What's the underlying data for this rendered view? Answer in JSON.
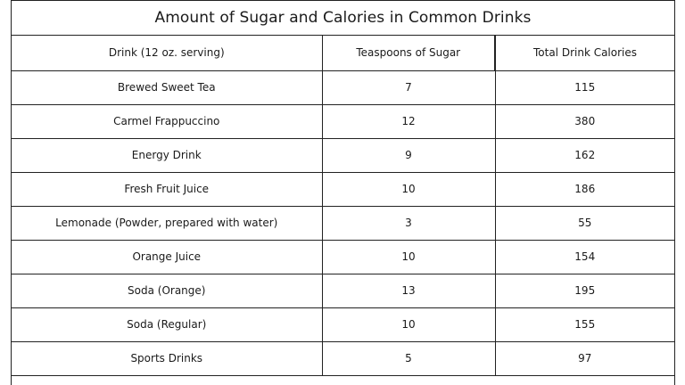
{
  "title": "Amount of Sugar and Calories in Common Drinks",
  "columns": [
    "Drink (12 oz. serving)",
    "Teaspoons of Sugar",
    "Total Drink Calories"
  ],
  "rows": [
    {
      "drink": "Brewed Sweet Tea",
      "sugar": "7",
      "calories": "115"
    },
    {
      "drink": "Carmel Frappuccino",
      "sugar": "12",
      "calories": "380"
    },
    {
      "drink": "Energy Drink",
      "sugar": "9",
      "calories": "162"
    },
    {
      "drink": "Fresh Fruit Juice",
      "sugar": "10",
      "calories": "186"
    },
    {
      "drink": "Lemonade (Powder, prepared with water)",
      "sugar": "3",
      "calories": "55"
    },
    {
      "drink": "Orange Juice",
      "sugar": "10",
      "calories": "154"
    },
    {
      "drink": "Soda (Orange)",
      "sugar": "13",
      "calories": "195"
    },
    {
      "drink": "Soda (Regular)",
      "sugar": "10",
      "calories": "155"
    },
    {
      "drink": "Sports Drinks",
      "sugar": "5",
      "calories": "97"
    }
  ]
}
